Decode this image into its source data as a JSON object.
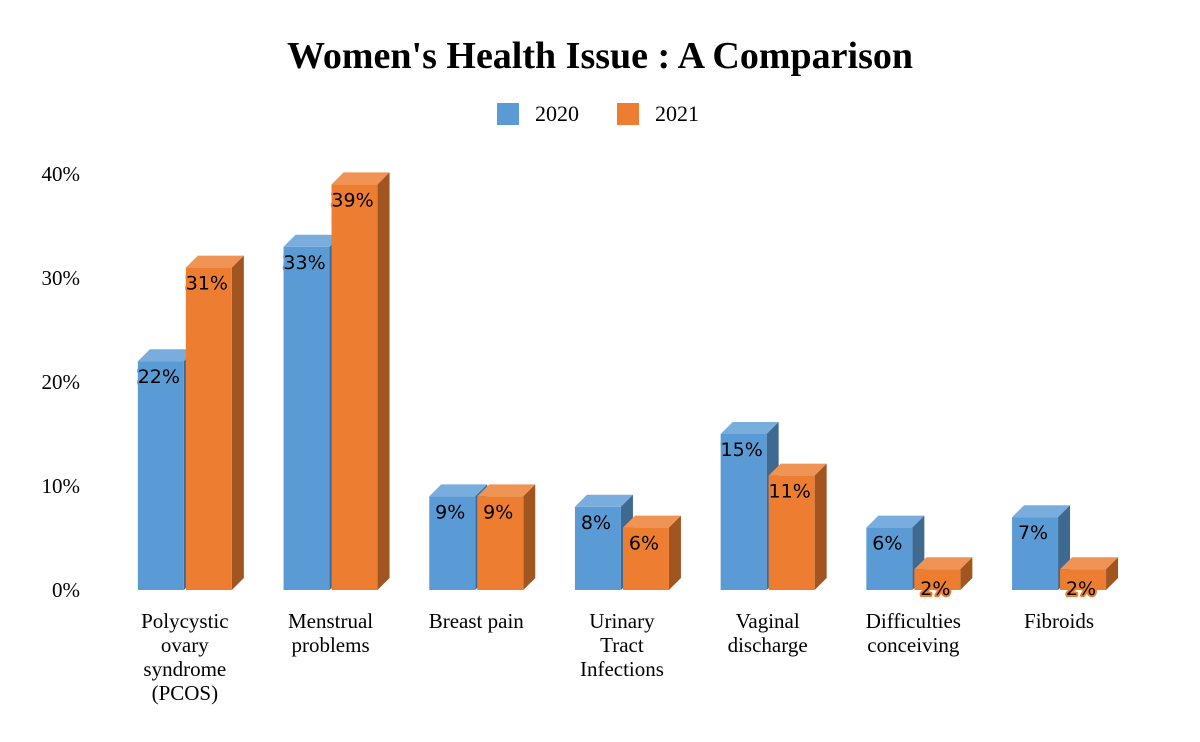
{
  "chart_data": {
    "type": "bar",
    "title": "Women's Health Issue : A Comparison",
    "xlabel": "",
    "ylabel": "",
    "ylim": [
      0,
      40
    ],
    "yticks": [
      "0%",
      "10%",
      "20%",
      "30%",
      "40%"
    ],
    "grid": false,
    "legend_position": "top-center",
    "categories": [
      [
        "Polycystic",
        "ovary",
        "syndrome",
        "(PCOS)"
      ],
      [
        "Menstrual",
        "problems"
      ],
      [
        "Breast pain"
      ],
      [
        "Urinary",
        "Tract",
        "Infections"
      ],
      [
        "Vaginal",
        "discharge"
      ],
      [
        "Difficulties",
        "conceiving"
      ],
      [
        "Fibroids"
      ]
    ],
    "series": [
      {
        "name": "2020",
        "color": "#5b9bd5",
        "values": [
          22,
          33,
          9,
          8,
          15,
          6,
          7
        ],
        "labels": [
          "22%",
          "33%",
          "9%",
          "8%",
          "15%",
          "6%",
          "7%"
        ]
      },
      {
        "name": "2021",
        "color": "#ed7d31",
        "values": [
          31,
          39,
          9,
          6,
          11,
          2,
          2
        ],
        "labels": [
          "31%",
          "39%",
          "9%",
          "6%",
          "11%",
          "2%",
          "2%"
        ]
      }
    ]
  }
}
